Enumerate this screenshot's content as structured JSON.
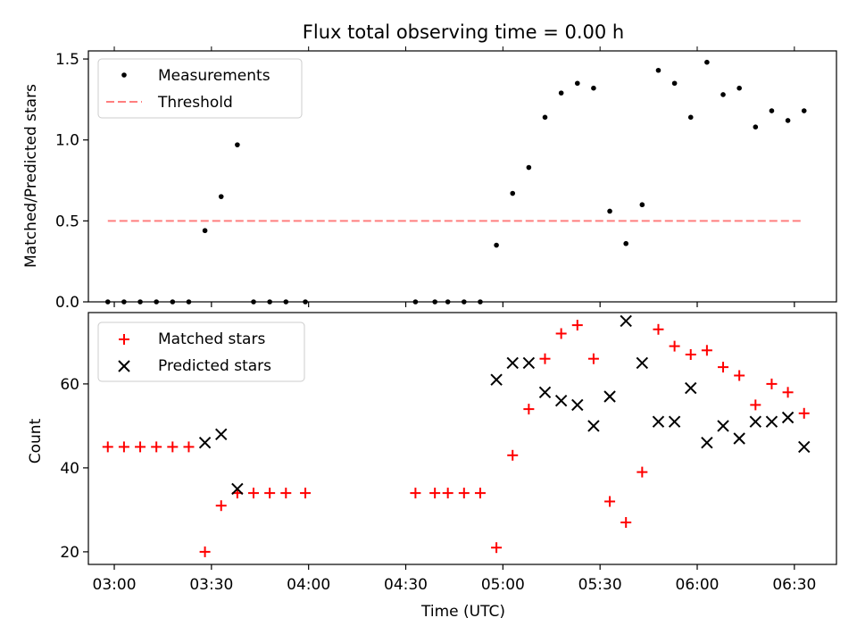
{
  "figure": {
    "title": "Flux total observing time = 0.00 h"
  },
  "chart_data": [
    {
      "type": "scatter",
      "ylabel": "Matched/Predicted stars",
      "xlabel": "",
      "xlim": [
        "02:52",
        "06:43"
      ],
      "ylim": [
        0,
        1.55
      ],
      "yticks": [
        0,
        0.5,
        1.0,
        1.5
      ],
      "ytick_labels": [
        "0.0",
        "0.5",
        "1.0",
        "1.5"
      ],
      "xticks": [
        "03:00",
        "03:30",
        "04:00",
        "04:30",
        "05:00",
        "05:30",
        "06:00",
        "06:30"
      ],
      "grid": false,
      "legend_position": "upper-left",
      "legend": [
        "Measurements",
        "Threshold"
      ],
      "threshold": {
        "name": "Threshold",
        "value": 0.5,
        "x_range": [
          "02:58",
          "06:32"
        ],
        "color": "#ff7f7f"
      },
      "series": [
        {
          "name": "Measurements",
          "marker": "dot",
          "color": "#000000",
          "x": [
            "02:58",
            "03:03",
            "03:08",
            "03:13",
            "03:18",
            "03:23",
            "03:28",
            "03:33",
            "03:38",
            "03:43",
            "03:48",
            "03:53",
            "03:59",
            "04:33",
            "04:39",
            "04:43",
            "04:48",
            "04:53",
            "04:58",
            "05:03",
            "05:08",
            "05:13",
            "05:18",
            "05:23",
            "05:28",
            "05:33",
            "05:38",
            "05:43",
            "05:48",
            "05:53",
            "05:58",
            "06:03",
            "06:08",
            "06:13",
            "06:18",
            "06:23",
            "06:28",
            "06:33"
          ],
          "y": [
            0,
            0,
            0,
            0,
            0,
            0,
            0.44,
            0.65,
            0.97,
            0,
            0,
            0,
            0,
            0,
            0,
            0,
            0,
            0,
            0.35,
            0.67,
            0.83,
            1.14,
            1.29,
            1.35,
            1.32,
            0.56,
            0.36,
            0.6,
            1.43,
            1.35,
            1.14,
            1.48,
            1.28,
            1.32,
            1.08,
            1.18,
            1.12,
            1.18
          ]
        }
      ]
    },
    {
      "type": "scatter",
      "ylabel": "Count",
      "xlabel": "Time (UTC)",
      "xlim": [
        "02:52",
        "06:43"
      ],
      "ylim": [
        17,
        77
      ],
      "yticks": [
        20,
        40,
        60
      ],
      "ytick_labels": [
        "20",
        "40",
        "60"
      ],
      "xticks": [
        "03:00",
        "03:30",
        "04:00",
        "04:30",
        "05:00",
        "05:30",
        "06:00",
        "06:30"
      ],
      "grid": false,
      "legend_position": "upper-left",
      "legend": [
        "Matched stars",
        "Predicted stars"
      ],
      "series": [
        {
          "name": "Matched stars",
          "marker": "plus",
          "color": "#ff0000",
          "x": [
            "02:58",
            "03:03",
            "03:08",
            "03:13",
            "03:18",
            "03:23",
            "03:28",
            "03:33",
            "03:38",
            "03:43",
            "03:48",
            "03:53",
            "03:59",
            "04:33",
            "04:39",
            "04:43",
            "04:48",
            "04:53",
            "04:58",
            "05:03",
            "05:08",
            "05:13",
            "05:18",
            "05:23",
            "05:28",
            "05:33",
            "05:38",
            "05:43",
            "05:48",
            "05:53",
            "05:58",
            "06:03",
            "06:08",
            "06:13",
            "06:18",
            "06:23",
            "06:28",
            "06:33"
          ],
          "y": [
            45,
            45,
            45,
            45,
            45,
            45,
            20,
            31,
            34,
            34,
            34,
            34,
            34,
            34,
            34,
            34,
            34,
            34,
            21,
            43,
            54,
            66,
            72,
            74,
            66,
            32,
            27,
            39,
            73,
            69,
            67,
            68,
            64,
            62,
            55,
            60,
            58,
            53
          ]
        },
        {
          "name": "Predicted stars",
          "marker": "x",
          "color": "#000000",
          "x": [
            "03:28",
            "03:33",
            "03:38",
            "04:58",
            "05:03",
            "05:08",
            "05:13",
            "05:18",
            "05:23",
            "05:28",
            "05:33",
            "05:38",
            "05:43",
            "05:48",
            "05:53",
            "05:58",
            "06:03",
            "06:08",
            "06:13",
            "06:18",
            "06:23",
            "06:28",
            "06:33"
          ],
          "y": [
            46,
            48,
            35,
            61,
            65,
            65,
            58,
            56,
            55,
            50,
            57,
            75,
            65,
            51,
            51,
            59,
            46,
            50,
            47,
            51,
            51,
            52,
            45
          ]
        }
      ]
    }
  ]
}
